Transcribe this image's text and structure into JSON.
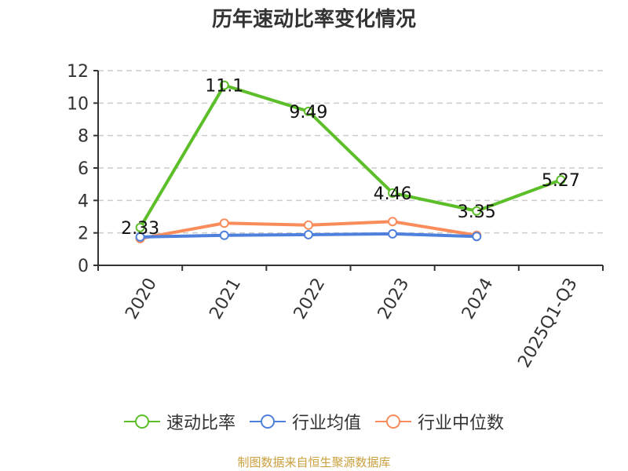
{
  "title": "历年速动比率变化情况",
  "source": "制图数据来自恒生聚源数据库",
  "legend": [
    {
      "label": "速动比率",
      "color": "#5cbf2a"
    },
    {
      "label": "行业均值",
      "color": "#4f80dc"
    },
    {
      "label": "行业中位数",
      "color": "#f98c5a"
    }
  ],
  "chart_data": {
    "type": "line",
    "title": "历年速动比率变化情况",
    "xlabel": "",
    "ylabel": "",
    "ylim": [
      0,
      12
    ],
    "yticks": [
      0,
      2,
      4,
      6,
      8,
      10,
      12
    ],
    "grid": true,
    "legend_position": "bottom",
    "categories": [
      "2020",
      "2021",
      "2022",
      "2023",
      "2024",
      "2025Q1-Q3"
    ],
    "series": [
      {
        "name": "速动比率",
        "color": "#5cbf2a",
        "values": [
          2.33,
          11.1,
          9.49,
          4.46,
          3.35,
          5.27
        ],
        "labels": [
          "2.33",
          "11.1",
          "9.49",
          "4.46",
          "3.35",
          "5.27"
        ]
      },
      {
        "name": "行业均值",
        "color": "#4f80dc",
        "values": [
          1.75,
          1.85,
          1.89,
          1.94,
          1.78,
          null
        ]
      },
      {
        "name": "行业中位数",
        "color": "#f98c5a",
        "values": [
          1.65,
          2.6,
          2.48,
          2.7,
          1.85,
          null
        ]
      }
    ]
  }
}
